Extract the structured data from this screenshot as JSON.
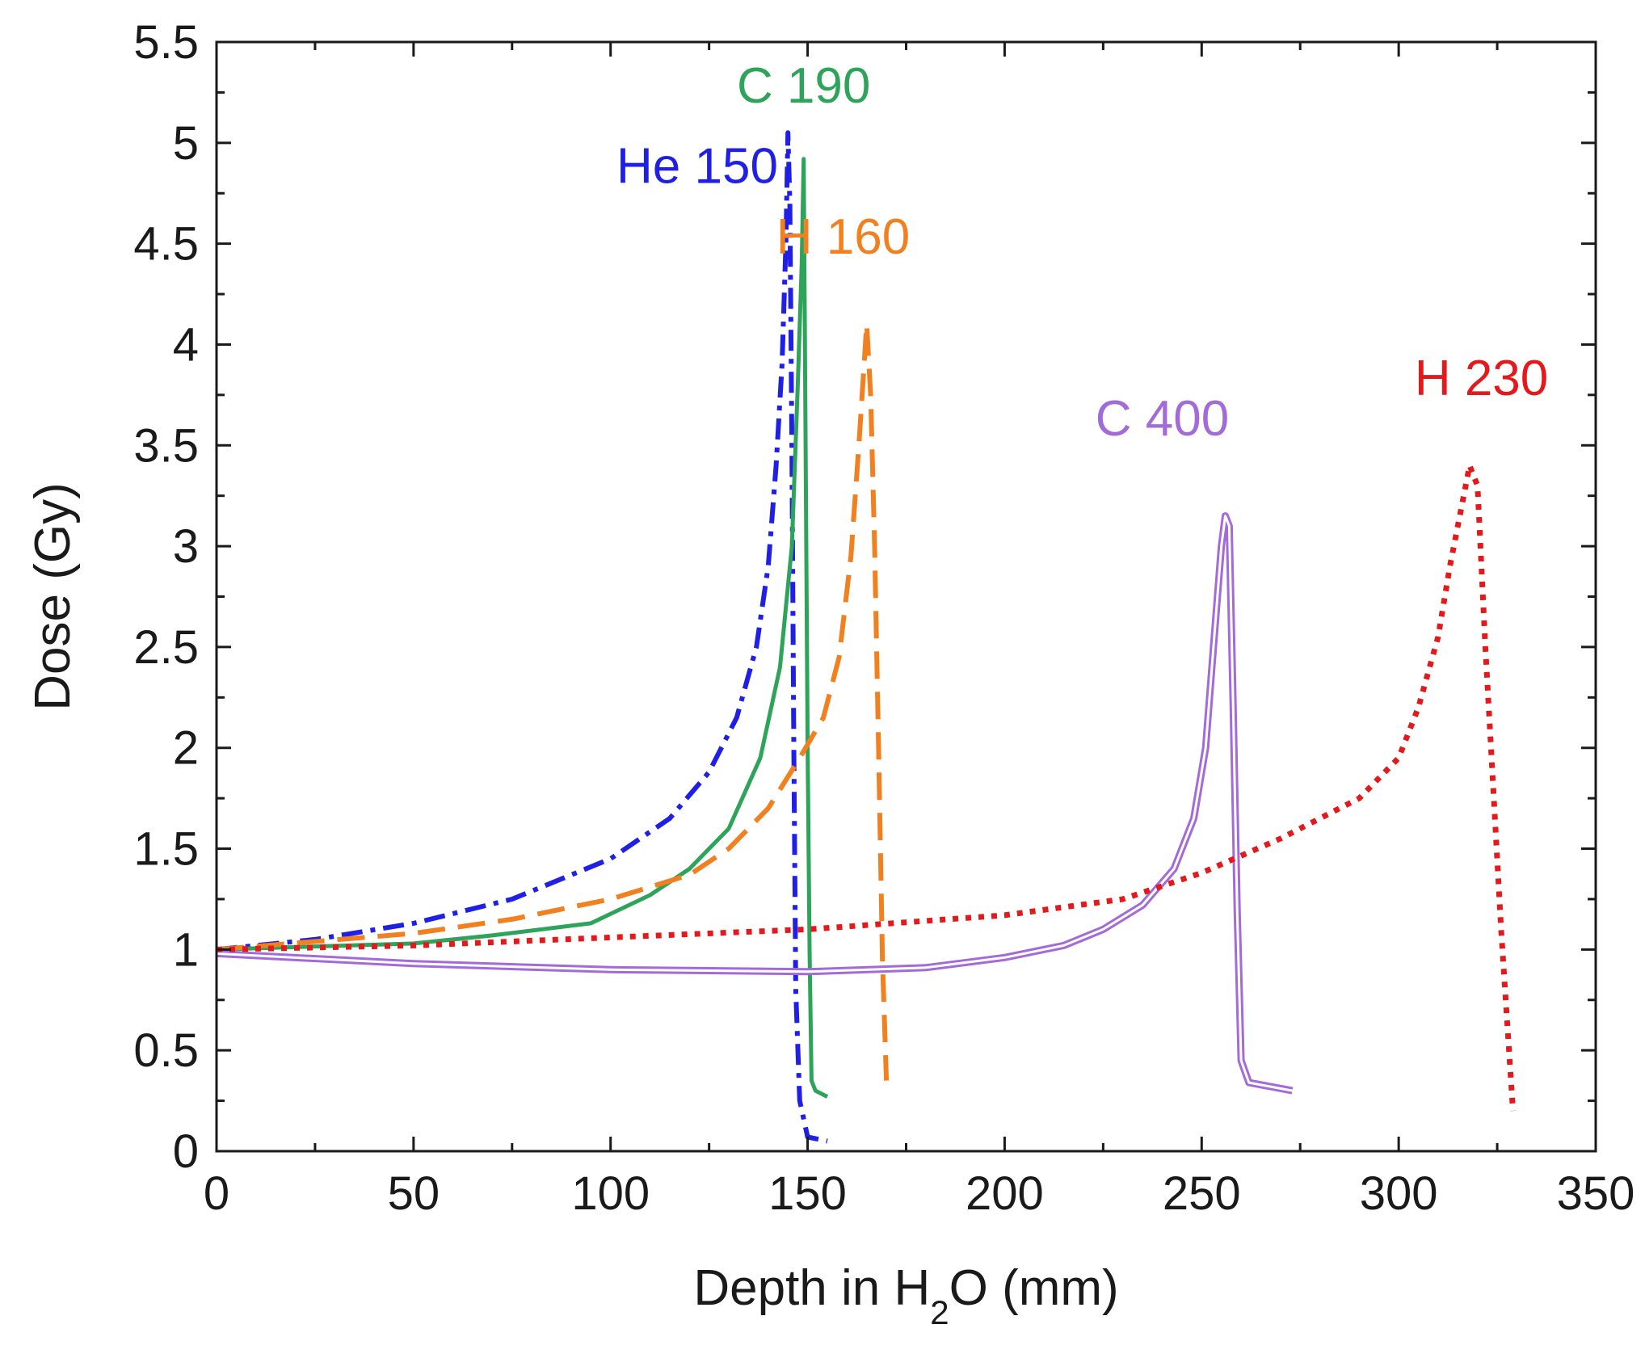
{
  "chart_data": {
    "type": "line",
    "title": "",
    "xlabel": "Depth in H2O (mm)",
    "xlabel_parts": {
      "pre": "Depth in H",
      "sub": "2",
      "post": "O (mm)"
    },
    "ylabel": "Dose (Gy)",
    "xlim": [
      0,
      350
    ],
    "ylim": [
      0,
      5.5
    ],
    "xticks": [
      "0",
      "50",
      "100",
      "150",
      "200",
      "250",
      "300",
      "350"
    ],
    "xtick_values": [
      0,
      50,
      100,
      150,
      200,
      250,
      300,
      350
    ],
    "yticks": [
      "0",
      "0.5",
      "1",
      "1.5",
      "2",
      "2.5",
      "3",
      "3.5",
      "4",
      "4.5",
      "5",
      "5.5"
    ],
    "ytick_values": [
      0,
      0.5,
      1,
      1.5,
      2,
      2.5,
      3,
      3.5,
      4,
      4.5,
      5,
      5.5
    ],
    "grid": false,
    "series": [
      {
        "name": "He 150",
        "color": "#1f1fe6",
        "style": "dashdot",
        "label_at": [
          122,
          4.8
        ],
        "x": [
          0,
          25,
          50,
          75,
          100,
          115,
          125,
          132,
          137,
          140,
          142,
          143.5,
          144.5,
          145,
          145.5,
          146,
          146.5,
          147,
          148,
          150,
          155
        ],
        "y": [
          1.0,
          1.05,
          1.13,
          1.25,
          1.45,
          1.65,
          1.88,
          2.15,
          2.5,
          2.9,
          3.4,
          3.9,
          4.5,
          5.05,
          4.7,
          3.5,
          2.0,
          0.8,
          0.25,
          0.07,
          0.05
        ]
      },
      {
        "name": "C 190",
        "color": "#2ea35a",
        "style": "solid",
        "label_at": [
          149,
          5.2
        ],
        "x": [
          0,
          50,
          70,
          95,
          110,
          120,
          130,
          138,
          143,
          146,
          147.5,
          148.5,
          149,
          149.5,
          150,
          150.5,
          151,
          152,
          155
        ],
        "y": [
          1.0,
          1.03,
          1.07,
          1.13,
          1.27,
          1.4,
          1.6,
          1.95,
          2.4,
          3.0,
          3.8,
          4.4,
          4.92,
          3.5,
          2.0,
          1.0,
          0.35,
          0.3,
          0.27
        ]
      },
      {
        "name": "H 160",
        "color": "#f08020",
        "style": "dashed",
        "label_at": [
          159,
          4.45
        ],
        "x": [
          0,
          50,
          75,
          100,
          120,
          130,
          140,
          148,
          154,
          158,
          161,
          163,
          165,
          166,
          167,
          168,
          169,
          170
        ],
        "y": [
          1.0,
          1.08,
          1.15,
          1.25,
          1.37,
          1.5,
          1.7,
          1.95,
          2.15,
          2.45,
          2.95,
          3.5,
          4.1,
          3.75,
          3.0,
          2.0,
          0.95,
          0.35
        ]
      },
      {
        "name": "C 400",
        "color": "#a36bd9",
        "style": "double",
        "label_at": [
          240,
          3.55
        ],
        "x": [
          0,
          50,
          100,
          150,
          180,
          200,
          215,
          225,
          235,
          243,
          248,
          251,
          253,
          255,
          256,
          257,
          258,
          259,
          260,
          262,
          273
        ],
        "y": [
          0.98,
          0.93,
          0.9,
          0.89,
          0.91,
          0.96,
          1.02,
          1.1,
          1.22,
          1.4,
          1.65,
          2.0,
          2.5,
          3.0,
          3.15,
          3.1,
          2.2,
          1.2,
          0.45,
          0.34,
          0.3
        ]
      },
      {
        "name": "H 230",
        "color": "#e31a1c",
        "style": "dotted",
        "label_at": [
          321,
          3.75
        ],
        "x": [
          0,
          50,
          100,
          150,
          200,
          230,
          250,
          270,
          290,
          300,
          305,
          310,
          313,
          316,
          318,
          320,
          322,
          324,
          326,
          328,
          329
        ],
        "y": [
          1.0,
          1.02,
          1.06,
          1.1,
          1.17,
          1.25,
          1.38,
          1.55,
          1.75,
          1.95,
          2.2,
          2.55,
          2.9,
          3.2,
          3.4,
          3.3,
          2.5,
          1.8,
          1.1,
          0.5,
          0.2
        ]
      }
    ]
  }
}
